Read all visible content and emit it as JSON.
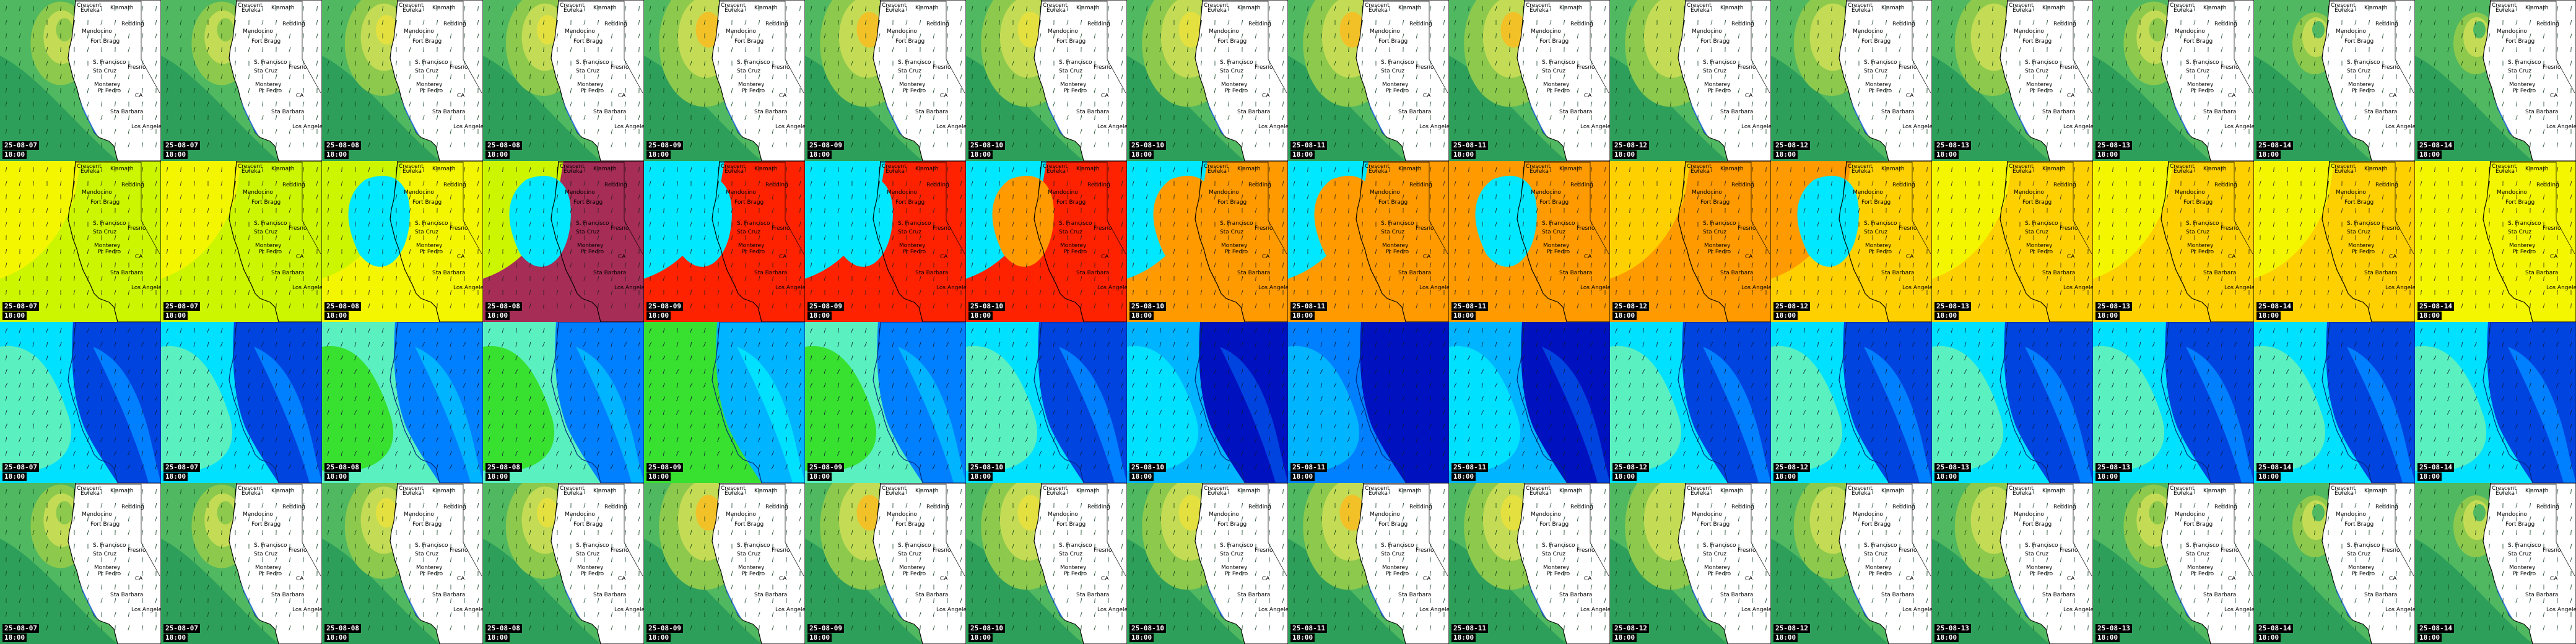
{
  "cities": {
    "crescent": "Crescent",
    "eureka": "Eureka",
    "klamath": "Klamath",
    "fort_bragg": "Fort Bragg",
    "mendocino": "Mendocino",
    "redding": "Redding",
    "san_francisco": "S. Francisco",
    "santa_cruz": "Sta Cruz",
    "fresno": "Fresno",
    "monterey": "Monterey",
    "point": "Pt Pedro",
    "santa_barbara": "Sta Barbara",
    "los_angeles": "Los Angeles",
    "state": "CA"
  },
  "palettes": {
    "pressure": [
      "#2e9f5a",
      "#4fb860",
      "#8cc94c",
      "#c4dc55",
      "#e4e040",
      "#f2c128"
    ],
    "temperature": [
      "#00e8ff",
      "#ccf500",
      "#f4f600",
      "#ffd000",
      "#ff9a00",
      "#ff2200",
      "#a52d56"
    ],
    "wind": [
      "#0011c0",
      "#0044e0",
      "#0080ff",
      "#00b4ff",
      "#00e0ff",
      "#5af0c0",
      "#38e030"
    ],
    "land": "#ffffff",
    "sea_blue": "#2a6fd8",
    "coast": "#000000"
  },
  "rows": [
    {
      "variable": "pressure",
      "frames": [
        {
          "date": "25-08-07",
          "time": "18:00",
          "blob": 1,
          "peak": 2
        },
        {
          "date": "25-08-07",
          "time": "18:00",
          "blob": 1,
          "peak": 2
        },
        {
          "date": "25-08-08",
          "time": "18:00",
          "blob": 2,
          "peak": 4
        },
        {
          "date": "25-08-08",
          "time": "18:00",
          "blob": 2,
          "peak": 4
        },
        {
          "date": "25-08-09",
          "time": "18:00",
          "blob": 3,
          "peak": 5
        },
        {
          "date": "25-08-09",
          "time": "18:00",
          "blob": 3,
          "peak": 5
        },
        {
          "date": "25-08-10",
          "time": "18:00",
          "blob": 3,
          "peak": 4
        },
        {
          "date": "25-08-10",
          "time": "18:00",
          "blob": 3,
          "peak": 4
        },
        {
          "date": "25-08-11",
          "time": "18:00",
          "blob": 3,
          "peak": 5
        },
        {
          "date": "25-08-11",
          "time": "18:00",
          "blob": 3,
          "peak": 5
        },
        {
          "date": "25-08-12",
          "time": "18:00",
          "blob": 3,
          "peak": 3
        },
        {
          "date": "25-08-12",
          "time": "18:00",
          "blob": 2,
          "peak": 3
        },
        {
          "date": "25-08-13",
          "time": "18:00",
          "blob": 2,
          "peak": 3
        },
        {
          "date": "25-08-13",
          "time": "18:00",
          "blob": 1,
          "peak": 2
        },
        {
          "date": "25-08-14",
          "time": "18:00",
          "blob": 0,
          "peak": 1
        },
        {
          "date": "25-08-14",
          "time": "18:00",
          "blob": 0,
          "peak": 1
        }
      ]
    },
    {
      "variable": "temperature",
      "frames": [
        {
          "date": "25-08-07",
          "time": "18:00",
          "sea": 2,
          "land": 1,
          "blob": -1
        },
        {
          "date": "25-08-07",
          "time": "18:00",
          "sea": 2,
          "land": 1,
          "blob": -1
        },
        {
          "date": "25-08-08",
          "time": "18:00",
          "sea": 1,
          "land": 2,
          "blob": 0
        },
        {
          "date": "25-08-08",
          "time": "18:00",
          "sea": 1,
          "land": 6,
          "blob": 0
        },
        {
          "date": "25-08-09",
          "time": "18:00",
          "sea": 0,
          "land": 5,
          "blob": 0
        },
        {
          "date": "25-08-09",
          "time": "18:00",
          "sea": 0,
          "land": 5,
          "blob": 0
        },
        {
          "date": "25-08-10",
          "time": "18:00",
          "sea": 0,
          "land": 5,
          "blob": 4
        },
        {
          "date": "25-08-10",
          "time": "18:00",
          "sea": 0,
          "land": 4,
          "blob": 4
        },
        {
          "date": "25-08-11",
          "time": "18:00",
          "sea": 0,
          "land": 4,
          "blob": 4
        },
        {
          "date": "25-08-11",
          "time": "18:00",
          "sea": 4,
          "land": 4,
          "blob": 0
        },
        {
          "date": "25-08-12",
          "time": "18:00",
          "sea": 3,
          "land": 4,
          "blob": -1
        },
        {
          "date": "25-08-12",
          "time": "18:00",
          "sea": 4,
          "land": 3,
          "blob": 0
        },
        {
          "date": "25-08-13",
          "time": "18:00",
          "sea": 2,
          "land": 3,
          "blob": -1
        },
        {
          "date": "25-08-13",
          "time": "18:00",
          "sea": 2,
          "land": 3,
          "blob": -1
        },
        {
          "date": "25-08-14",
          "time": "18:00",
          "sea": 2,
          "land": 3,
          "blob": -1
        },
        {
          "date": "25-08-14",
          "time": "18:00",
          "sea": 2,
          "land": 2,
          "blob": -1
        }
      ]
    },
    {
      "variable": "wind",
      "frames": [
        {
          "date": "25-08-07",
          "time": "18:00",
          "level": 3
        },
        {
          "date": "25-08-07",
          "time": "18:00",
          "level": 3
        },
        {
          "date": "25-08-08",
          "time": "18:00",
          "level": 4
        },
        {
          "date": "25-08-08",
          "time": "18:00",
          "level": 4
        },
        {
          "date": "25-08-09",
          "time": "18:00",
          "level": 5
        },
        {
          "date": "25-08-09",
          "time": "18:00",
          "level": 4
        },
        {
          "date": "25-08-10",
          "time": "18:00",
          "level": 3
        },
        {
          "date": "25-08-10",
          "time": "18:00",
          "level": 2
        },
        {
          "date": "25-08-11",
          "time": "18:00",
          "level": 1
        },
        {
          "date": "25-08-11",
          "time": "18:00",
          "level": 2
        },
        {
          "date": "25-08-12",
          "time": "18:00",
          "level": 3
        },
        {
          "date": "25-08-12",
          "time": "18:00",
          "level": 3
        },
        {
          "date": "25-08-13",
          "time": "18:00",
          "level": 3
        },
        {
          "date": "25-08-13",
          "time": "18:00",
          "level": 3
        },
        {
          "date": "25-08-14",
          "time": "18:00",
          "level": 3
        },
        {
          "date": "25-08-14",
          "time": "18:00",
          "level": 3
        }
      ]
    },
    {
      "variable": "pressure",
      "frames": [
        {
          "date": "25-08-07",
          "time": "18:00",
          "blob": 1,
          "peak": 2
        },
        {
          "date": "25-08-07",
          "time": "18:00",
          "blob": 1,
          "peak": 2
        },
        {
          "date": "25-08-08",
          "time": "18:00",
          "blob": 2,
          "peak": 4
        },
        {
          "date": "25-08-08",
          "time": "18:00",
          "blob": 2,
          "peak": 4
        },
        {
          "date": "25-08-09",
          "time": "18:00",
          "blob": 3,
          "peak": 5
        },
        {
          "date": "25-08-09",
          "time": "18:00",
          "blob": 3,
          "peak": 5
        },
        {
          "date": "25-08-10",
          "time": "18:00",
          "blob": 3,
          "peak": 4
        },
        {
          "date": "25-08-10",
          "time": "18:00",
          "blob": 3,
          "peak": 4
        },
        {
          "date": "25-08-11",
          "time": "18:00",
          "blob": 3,
          "peak": 5
        },
        {
          "date": "25-08-11",
          "time": "18:00",
          "blob": 3,
          "peak": 4
        },
        {
          "date": "25-08-12",
          "time": "18:00",
          "blob": 3,
          "peak": 3
        },
        {
          "date": "25-08-12",
          "time": "18:00",
          "blob": 2,
          "peak": 3
        },
        {
          "date": "25-08-13",
          "time": "18:00",
          "blob": 2,
          "peak": 3
        },
        {
          "date": "25-08-13",
          "time": "18:00",
          "blob": 1,
          "peak": 2
        },
        {
          "date": "25-08-14",
          "time": "18:00",
          "blob": 0,
          "peak": 1
        },
        {
          "date": "25-08-14",
          "time": "18:00",
          "blob": 0,
          "peak": 1
        }
      ]
    }
  ]
}
